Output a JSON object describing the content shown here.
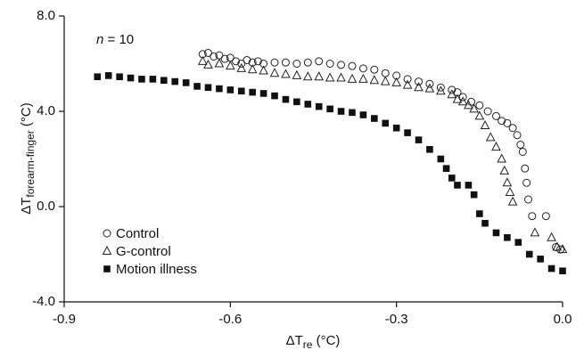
{
  "chart_data": {
    "type": "scatter",
    "ylabel": [
      "ΔT",
      "forearm-finger",
      " (°C)"
    ],
    "xlabel": [
      "ΔT",
      "re",
      " (°C)"
    ],
    "annotation": [
      "n",
      " = 10"
    ],
    "xlim": [
      -0.9,
      0.0
    ],
    "xticks": [
      -0.9,
      -0.6,
      -0.3,
      {
        "value": 0.0,
        "label": "0.0"
      }
    ],
    "ylim": [
      -4.0,
      8.0
    ],
    "yticks": [
      {
        "value": -4.0,
        "label": "-4.0"
      },
      {
        "value": 0.0,
        "label": "0.0"
      },
      {
        "value": 4.0,
        "label": "4.0"
      },
      {
        "value": 8.0,
        "label": "8.0"
      }
    ],
    "legend": "lower left",
    "series": [
      {
        "name": "Control",
        "marker": "circle",
        "color": "#222222",
        "x": [
          -0.65,
          -0.64,
          -0.63,
          -0.62,
          -0.61,
          -0.6,
          -0.59,
          -0.58,
          -0.57,
          -0.56,
          -0.55,
          -0.54,
          -0.52,
          -0.5,
          -0.48,
          -0.46,
          -0.44,
          -0.42,
          -0.4,
          -0.38,
          -0.36,
          -0.34,
          -0.32,
          -0.3,
          -0.28,
          -0.26,
          -0.24,
          -0.22,
          -0.2,
          -0.19,
          -0.18,
          -0.165,
          -0.15,
          -0.135,
          -0.12,
          -0.11,
          -0.1,
          -0.09,
          -0.082,
          -0.076,
          -0.072,
          -0.068,
          -0.065,
          -0.062,
          -0.055,
          -0.03,
          -0.012,
          -0.004
        ],
        "values": [
          6.4,
          6.45,
          6.3,
          6.35,
          6.2,
          6.25,
          6.1,
          6.0,
          6.15,
          6.05,
          6.1,
          6.0,
          6.05,
          6.05,
          6.0,
          6.05,
          6.1,
          6.0,
          5.95,
          5.9,
          5.8,
          5.75,
          5.6,
          5.5,
          5.35,
          5.25,
          5.15,
          5.0,
          4.9,
          4.8,
          4.6,
          4.4,
          4.25,
          4.0,
          3.8,
          3.6,
          3.5,
          3.3,
          3.0,
          2.6,
          2.3,
          1.6,
          1.0,
          0.3,
          -0.4,
          -0.4,
          -1.7,
          -1.8
        ]
      },
      {
        "name": "G-control",
        "marker": "triangle",
        "color": "#222222",
        "x": [
          -0.65,
          -0.64,
          -0.62,
          -0.6,
          -0.58,
          -0.56,
          -0.54,
          -0.52,
          -0.5,
          -0.48,
          -0.46,
          -0.44,
          -0.42,
          -0.4,
          -0.38,
          -0.36,
          -0.34,
          -0.32,
          -0.3,
          -0.28,
          -0.26,
          -0.24,
          -0.22,
          -0.2,
          -0.19,
          -0.18,
          -0.17,
          -0.16,
          -0.15,
          -0.14,
          -0.13,
          -0.12,
          -0.11,
          -0.105,
          -0.1,
          -0.095,
          -0.09,
          -0.05,
          -0.02,
          -0.01,
          0.0
        ],
        "values": [
          6.1,
          5.95,
          6.0,
          5.9,
          5.8,
          5.75,
          5.7,
          5.6,
          5.55,
          5.5,
          5.45,
          5.45,
          5.4,
          5.4,
          5.35,
          5.35,
          5.3,
          5.25,
          5.2,
          5.1,
          5.0,
          4.95,
          4.85,
          4.7,
          4.5,
          4.4,
          4.25,
          4.1,
          3.8,
          3.4,
          2.9,
          2.5,
          2.0,
          1.5,
          1.0,
          0.6,
          0.2,
          -1.1,
          -1.3,
          -1.7,
          -1.8
        ]
      },
      {
        "name": "Motion illness",
        "marker": "square",
        "color": "#111111",
        "x": [
          -0.84,
          -0.82,
          -0.8,
          -0.78,
          -0.76,
          -0.74,
          -0.72,
          -0.7,
          -0.68,
          -0.66,
          -0.64,
          -0.62,
          -0.6,
          -0.58,
          -0.56,
          -0.54,
          -0.52,
          -0.5,
          -0.48,
          -0.46,
          -0.44,
          -0.42,
          -0.4,
          -0.38,
          -0.36,
          -0.34,
          -0.32,
          -0.3,
          -0.28,
          -0.26,
          -0.24,
          -0.22,
          -0.21,
          -0.2,
          -0.19,
          -0.17,
          -0.16,
          -0.15,
          -0.14,
          -0.12,
          -0.1,
          -0.08,
          -0.06,
          -0.04,
          -0.02,
          0.0
        ],
        "values": [
          5.45,
          5.5,
          5.45,
          5.4,
          5.35,
          5.35,
          5.3,
          5.25,
          5.2,
          5.05,
          5.0,
          4.95,
          4.9,
          4.85,
          4.8,
          4.75,
          4.65,
          4.5,
          4.4,
          4.3,
          4.2,
          4.1,
          4.0,
          3.95,
          3.85,
          3.7,
          3.5,
          3.3,
          3.1,
          2.8,
          2.4,
          2.0,
          1.6,
          1.2,
          0.9,
          0.9,
          0.5,
          -0.3,
          -0.7,
          -1.1,
          -1.3,
          -1.5,
          -2.0,
          -2.2,
          -2.6,
          -2.7
        ]
      }
    ]
  }
}
